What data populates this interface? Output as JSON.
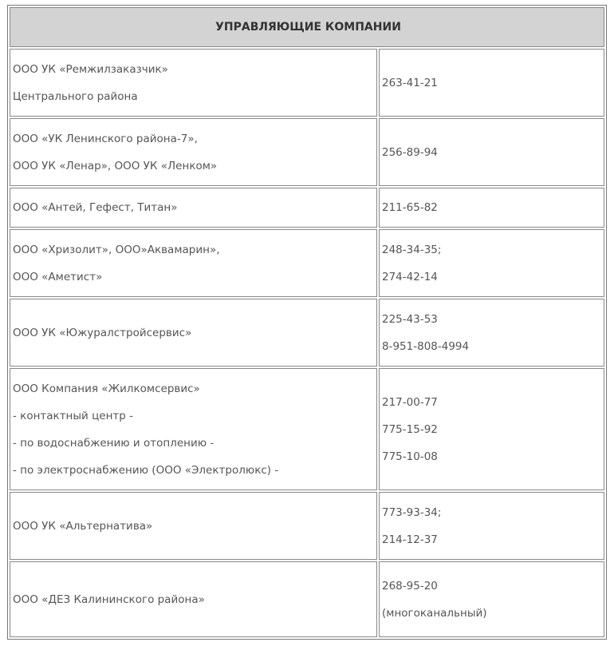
{
  "header": "УПРАВЛЯЮЩИЕ  КОМПАНИИ",
  "rows": [
    {
      "name": [
        "ООО  УК  «Ремжилзаказчик»",
        "Центрального района"
      ],
      "phones": [
        "263-41-21"
      ]
    },
    {
      "name": [
        "ООО «УК Ленинского района-7»,",
        "ООО УК «Ленар», ООО УК «Ленком»"
      ],
      "phones": [
        "256-89-94"
      ]
    },
    {
      "name": [
        "ООО  «Антей, Гефест, Титан»"
      ],
      "phones": [
        "211-65-82"
      ]
    },
    {
      "name": [
        "ООО «Хризолит», ООО»Аквамарин»,",
        "ООО «Аметист»"
      ],
      "phones": [
        "248-34-35;",
        "274-42-14"
      ]
    },
    {
      "name": [
        "ООО  УК «Южуралстройсервис»"
      ],
      "phones": [
        "225-43-53",
        "8-951-808-4994"
      ]
    },
    {
      "name": [
        "ООО  Компания «Жилкомсервис»",
        "- контактный центр -",
        "- по водоснабжению и отоплению -",
        "- по электроснабжению (ООО «Электролюкс) -"
      ],
      "phones": [
        "217-00-77",
        "775-15-92",
        "775-10-08"
      ]
    },
    {
      "name": [
        "ООО  УК «Альтернатива»"
      ],
      "phones": [
        "773-93-34;",
        "214-12-37"
      ]
    },
    {
      "name": [
        "ООО  «ДЕЗ Калининского района»"
      ],
      "phones": [
        "268-95-20",
        "(многоканальный)"
      ]
    }
  ]
}
